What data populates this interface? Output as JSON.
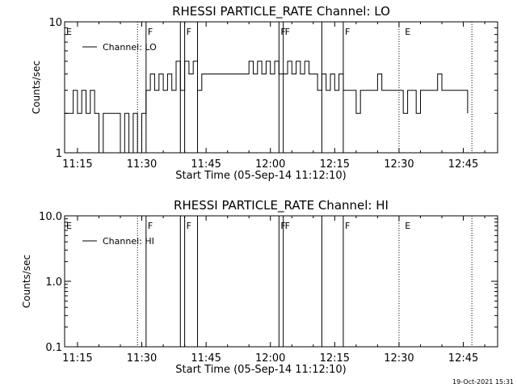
{
  "chart_data": [
    {
      "type": "line",
      "title": "RHESSI PARTICLE_RATE Channel: LO",
      "xlabel": "Start Time (05-Sep-14 11:12:10)",
      "ylabel": "Counts/sec",
      "yscale": "log",
      "ylim": [
        1,
        10
      ],
      "xlim": [
        "11:12",
        "12:53"
      ],
      "y_tick_labels": [
        "1",
        "10"
      ],
      "x_tick_labels": [
        "11:15",
        "11:30",
        "11:45",
        "12:00",
        "12:15",
        "12:30",
        "12:45"
      ],
      "series": [
        {
          "name": "Channel: LO",
          "x": [
            "11:12",
            "11:14",
            "11:15",
            "11:16",
            "11:17",
            "11:18",
            "11:19",
            "11:20",
            "11:21",
            "11:22",
            "11:23",
            "11:24",
            "11:25",
            "11:26",
            "11:27",
            "11:28",
            "11:29",
            "11:30",
            "11:31",
            "11:32",
            "11:33",
            "11:34",
            "11:35",
            "11:36",
            "11:37",
            "11:38",
            "11:39",
            "11:40",
            "11:41",
            "11:42",
            "11:43",
            "11:44",
            "11:45",
            "11:46",
            "11:48",
            "11:50",
            "11:52",
            "11:54",
            "11:55",
            "11:56",
            "11:57",
            "11:58",
            "11:59",
            "12:00",
            "12:01",
            "12:02",
            "12:03",
            "12:04",
            "12:05",
            "12:06",
            "12:07",
            "12:08",
            "12:09",
            "12:10",
            "12:11",
            "12:12",
            "12:13",
            "12:14",
            "12:15",
            "12:16",
            "12:17",
            "12:18",
            "12:19",
            "12:20",
            "12:21",
            "12:22",
            "12:23",
            "12:24",
            "12:25",
            "12:26",
            "12:27",
            "12:28",
            "12:29",
            "12:30",
            "12:31",
            "12:32",
            "12:33",
            "12:34",
            "12:35",
            "12:36",
            "12:37",
            "12:38",
            "12:39",
            "12:40",
            "12:41",
            "12:42",
            "12:43",
            "12:44",
            "12:45",
            "12:46"
          ],
          "values": [
            2,
            3,
            2,
            3,
            2,
            3,
            2,
            1,
            2,
            2,
            2,
            2,
            1,
            2,
            1,
            2,
            1,
            2,
            3,
            4,
            3,
            4,
            3,
            4,
            3,
            5,
            3,
            5,
            4,
            5,
            3,
            4,
            4,
            4,
            4,
            4,
            4,
            4,
            5,
            4,
            5,
            4,
            5,
            4,
            5,
            4,
            4,
            5,
            4,
            5,
            4,
            5,
            4,
            4,
            3,
            4,
            3,
            4,
            3,
            4,
            3,
            3,
            3,
            2,
            3,
            3,
            3,
            3,
            4,
            3,
            3,
            3,
            3,
            3,
            2,
            3,
            3,
            2,
            3,
            3,
            3,
            3,
            4,
            3,
            3,
            3,
            3,
            3,
            3,
            2
          ]
        }
      ],
      "flag_labels": [
        "E",
        "F",
        "F",
        "F",
        "F",
        "F",
        "E"
      ]
    },
    {
      "type": "line",
      "title": "RHESSI PARTICLE_RATE Channel: HI",
      "xlabel": "Start Time (05-Sep-14 11:12:10)",
      "ylabel": "Counts/sec",
      "yscale": "log",
      "ylim": [
        0.1,
        10
      ],
      "xlim": [
        "11:12",
        "12:53"
      ],
      "y_tick_labels": [
        "0.1",
        "1.0",
        "10.0"
      ],
      "x_tick_labels": [
        "11:15",
        "11:30",
        "11:45",
        "12:00",
        "12:15",
        "12:30",
        "12:45"
      ],
      "series": [
        {
          "name": "Channel: HI",
          "x": [],
          "values": []
        }
      ],
      "flag_labels": [
        "E",
        "F",
        "F",
        "F",
        "F",
        "F",
        "E"
      ]
    }
  ],
  "footer": {
    "timestamp": "19-Oct-2021 15:31"
  }
}
